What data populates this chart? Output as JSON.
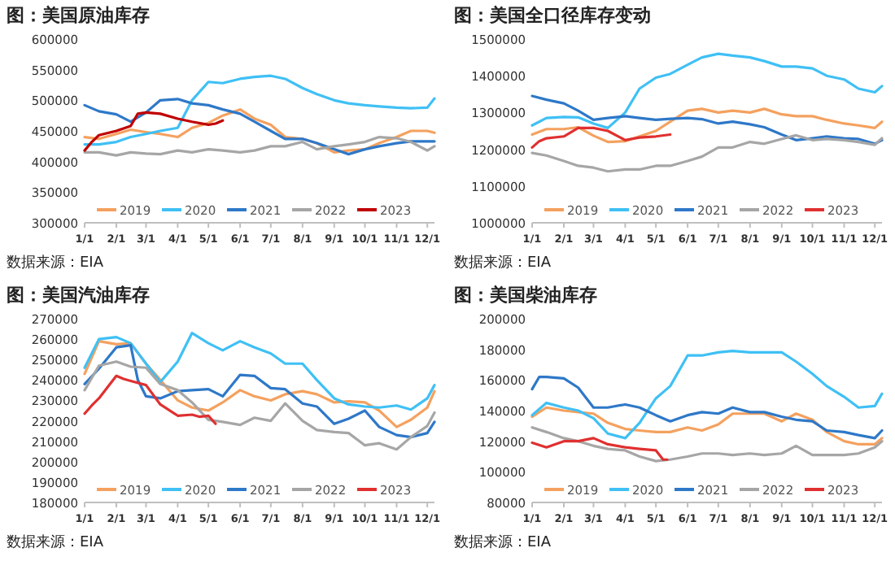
{
  "chart_data": [
    {
      "type": "line",
      "title": "图：美国原油库存",
      "annotations": [
        "数据来源：EIA"
      ],
      "legend": "bottom",
      "xlim": [
        "--01-01",
        "--12-08"
      ],
      "xticks": [
        {
          "value": "--01-01",
          "label": "1/1"
        },
        {
          "value": "--02-01",
          "label": "2/1"
        },
        {
          "value": "--03-01",
          "label": "3/1"
        },
        {
          "value": "--04-01",
          "label": "4/1"
        },
        {
          "value": "--05-01",
          "label": "5/1"
        },
        {
          "value": "--06-01",
          "label": "6/1"
        },
        {
          "value": "--07-01",
          "label": "7/1"
        },
        {
          "value": "--08-01",
          "label": "8/1"
        },
        {
          "value": "--09-01",
          "label": "9/1"
        },
        {
          "value": "--10-01",
          "label": "10/1"
        },
        {
          "value": "--11-01",
          "label": "11/1"
        },
        {
          "value": "--12-01",
          "label": "12/1"
        }
      ],
      "ylim": [
        300000,
        600000
      ],
      "yticks": [
        300000,
        350000,
        400000,
        450000,
        500000,
        550000,
        600000
      ],
      "x": [
        "--01-01",
        "--01-15",
        "--02-01",
        "--02-15",
        "--03-01",
        "--03-15",
        "--04-01",
        "--04-15",
        "--05-01",
        "--05-15",
        "--06-01",
        "--06-15",
        "--07-01",
        "--07-15",
        "--08-01",
        "--08-15",
        "--09-01",
        "--09-15",
        "--10-01",
        "--10-15",
        "--11-01",
        "--11-15",
        "--12-01",
        "--12-08"
      ],
      "series": [
        {
          "name": "2019",
          "color": "#f4a15f",
          "values": [
            440000,
            437000,
            445000,
            452000,
            448000,
            445000,
            440000,
            455000,
            463000,
            475000,
            485000,
            470000,
            460000,
            440000,
            437000,
            430000,
            415000,
            418000,
            420000,
            430000,
            440000,
            450000,
            450000,
            447000
          ]
        },
        {
          "name": "2020",
          "color": "#3fc0f5",
          "values": [
            428000,
            428000,
            432000,
            440000,
            445000,
            450000,
            455000,
            500000,
            530000,
            528000,
            535000,
            538000,
            540000,
            535000,
            520000,
            510000,
            500000,
            495000,
            492000,
            490000,
            488000,
            487000,
            488000,
            503000
          ]
        },
        {
          "name": "2021",
          "color": "#2e78c8",
          "values": [
            492000,
            482000,
            477000,
            465000,
            480000,
            500000,
            502000,
            495000,
            492000,
            485000,
            478000,
            465000,
            450000,
            437000,
            437000,
            430000,
            420000,
            412000,
            420000,
            425000,
            430000,
            433000,
            433000,
            433000
          ]
        },
        {
          "name": "2022",
          "color": "#a6a6a6",
          "values": [
            415000,
            415000,
            410000,
            415000,
            413000,
            412000,
            418000,
            415000,
            420000,
            418000,
            415000,
            418000,
            425000,
            425000,
            432000,
            420000,
            425000,
            428000,
            432000,
            440000,
            438000,
            432000,
            418000,
            425000
          ]
        },
        {
          "name": "2023",
          "color": "#c00000",
          "x": [
            "--01-01",
            "--01-08",
            "--01-15",
            "--02-01",
            "--02-15",
            "--02-22",
            "--03-01",
            "--03-15",
            "--04-01",
            "--04-15",
            "--05-01",
            "--05-08",
            "--05-15"
          ],
          "values": [
            418000,
            432000,
            443000,
            450000,
            458000,
            478000,
            480000,
            478000,
            470000,
            465000,
            460000,
            462000,
            467000
          ]
        }
      ]
    },
    {
      "type": "line",
      "title": "图：美国全口径库存变动",
      "annotations": [
        "数据来源：EIA"
      ],
      "legend": "bottom",
      "xlim": [
        "--01-01",
        "--12-08"
      ],
      "xticks": [
        {
          "value": "--01-01",
          "label": "1/1"
        },
        {
          "value": "--02-01",
          "label": "2/1"
        },
        {
          "value": "--03-01",
          "label": "3/1"
        },
        {
          "value": "--04-01",
          "label": "4/1"
        },
        {
          "value": "--05-01",
          "label": "5/1"
        },
        {
          "value": "--06-01",
          "label": "6/1"
        },
        {
          "value": "--07-01",
          "label": "7/1"
        },
        {
          "value": "--08-01",
          "label": "8/1"
        },
        {
          "value": "--09-01",
          "label": "9/1"
        },
        {
          "value": "--10-01",
          "label": "10/1"
        },
        {
          "value": "--11-01",
          "label": "11/1"
        },
        {
          "value": "--12-01",
          "label": "12/1"
        }
      ],
      "ylim": [
        1000000,
        1500000
      ],
      "yticks": [
        1000000,
        1100000,
        1200000,
        1300000,
        1400000,
        1500000
      ],
      "x": [
        "--01-01",
        "--01-15",
        "--02-01",
        "--02-15",
        "--03-01",
        "--03-15",
        "--04-01",
        "--04-15",
        "--05-01",
        "--05-15",
        "--06-01",
        "--06-15",
        "--07-01",
        "--07-15",
        "--08-01",
        "--08-15",
        "--09-01",
        "--09-15",
        "--10-01",
        "--10-15",
        "--11-01",
        "--11-15",
        "--12-01",
        "--12-08"
      ],
      "series": [
        {
          "name": "2019",
          "color": "#f4a15f",
          "values": [
            1240000,
            1255000,
            1255000,
            1260000,
            1237000,
            1220000,
            1222000,
            1235000,
            1250000,
            1275000,
            1305000,
            1310000,
            1300000,
            1305000,
            1300000,
            1310000,
            1295000,
            1290000,
            1290000,
            1280000,
            1270000,
            1265000,
            1258000,
            1275000
          ]
        },
        {
          "name": "2020",
          "color": "#3fc0f5",
          "values": [
            1265000,
            1285000,
            1288000,
            1287000,
            1270000,
            1258000,
            1300000,
            1365000,
            1395000,
            1405000,
            1430000,
            1450000,
            1460000,
            1455000,
            1450000,
            1440000,
            1425000,
            1425000,
            1420000,
            1400000,
            1390000,
            1365000,
            1355000,
            1372000
          ]
        },
        {
          "name": "2021",
          "color": "#2e78c8",
          "values": [
            1345000,
            1335000,
            1325000,
            1305000,
            1280000,
            1285000,
            1290000,
            1285000,
            1280000,
            1283000,
            1285000,
            1282000,
            1270000,
            1275000,
            1268000,
            1260000,
            1240000,
            1225000,
            1230000,
            1235000,
            1230000,
            1228000,
            1215000,
            1225000
          ]
        },
        {
          "name": "2022",
          "color": "#a6a6a6",
          "values": [
            1190000,
            1183000,
            1168000,
            1155000,
            1150000,
            1140000,
            1145000,
            1145000,
            1155000,
            1155000,
            1168000,
            1180000,
            1205000,
            1205000,
            1220000,
            1215000,
            1228000,
            1238000,
            1225000,
            1228000,
            1225000,
            1220000,
            1212000,
            1230000
          ]
        },
        {
          "name": "2023",
          "color": "#e03030",
          "x": [
            "--01-01",
            "--01-08",
            "--01-15",
            "--02-01",
            "--02-15",
            "--03-01",
            "--03-15",
            "--04-01",
            "--04-15",
            "--05-01",
            "--05-15"
          ],
          "values": [
            1205000,
            1222000,
            1230000,
            1235000,
            1258000,
            1258000,
            1250000,
            1225000,
            1232000,
            1235000,
            1240000
          ]
        }
      ]
    },
    {
      "type": "line",
      "title": "图：美国汽油库存",
      "annotations": [
        "数据来源：EIA"
      ],
      "legend": "bottom",
      "xlim": [
        "--01-01",
        "--12-08"
      ],
      "xticks": [
        {
          "value": "--01-01",
          "label": "1/1"
        },
        {
          "value": "--02-01",
          "label": "2/1"
        },
        {
          "value": "--03-01",
          "label": "3/1"
        },
        {
          "value": "--04-01",
          "label": "4/1"
        },
        {
          "value": "--05-01",
          "label": "5/1"
        },
        {
          "value": "--06-01",
          "label": "6/1"
        },
        {
          "value": "--07-01",
          "label": "7/1"
        },
        {
          "value": "--08-01",
          "label": "8/1"
        },
        {
          "value": "--09-01",
          "label": "9/1"
        },
        {
          "value": "--10-01",
          "label": "10/1"
        },
        {
          "value": "--11-01",
          "label": "11/1"
        },
        {
          "value": "--12-01",
          "label": "12/1"
        }
      ],
      "ylim": [
        180000,
        270000
      ],
      "yticks": [
        180000,
        190000,
        200000,
        210000,
        220000,
        230000,
        240000,
        250000,
        260000,
        270000
      ],
      "x": [
        "--01-01",
        "--01-15",
        "--02-01",
        "--02-15",
        "--03-01",
        "--03-15",
        "--04-01",
        "--04-15",
        "--05-01",
        "--05-15",
        "--06-01",
        "--06-15",
        "--07-01",
        "--07-15",
        "--08-01",
        "--08-15",
        "--09-01",
        "--09-15",
        "--10-01",
        "--10-15",
        "--11-01",
        "--11-15",
        "--12-01",
        "--12-08"
      ],
      "series": [
        {
          "name": "2019",
          "color": "#f4a15f",
          "values": [
            243000,
            259000,
            257500,
            258000,
            248000,
            240000,
            230000,
            226500,
            225000,
            229000,
            235000,
            232000,
            230000,
            233000,
            234500,
            233000,
            229000,
            229500,
            229000,
            225000,
            217000,
            220500,
            226500,
            234500
          ]
        },
        {
          "name": "2020",
          "color": "#3fc0f5",
          "values": [
            246000,
            260000,
            261000,
            258000,
            248000,
            239000,
            249000,
            263000,
            258000,
            254500,
            259000,
            256000,
            253000,
            248000,
            248000,
            240000,
            231000,
            228000,
            227000,
            226500,
            227500,
            225500,
            231000,
            237500
          ]
        },
        {
          "name": "2021",
          "color": "#2e78c8",
          "x": [
            "--01-01",
            "--01-15",
            "--02-01",
            "--02-15",
            "--02-22",
            "--03-01",
            "--03-15",
            "--04-01",
            "--04-15",
            "--05-01",
            "--05-15",
            "--06-01",
            "--06-15",
            "--07-01",
            "--07-15",
            "--08-01",
            "--08-15",
            "--09-01",
            "--09-15",
            "--10-01",
            "--10-15",
            "--11-01",
            "--11-15",
            "--12-01",
            "--12-08"
          ],
          "values": [
            238000,
            245500,
            256000,
            257000,
            240000,
            232000,
            231000,
            234500,
            235000,
            235500,
            232000,
            242500,
            242000,
            236000,
            235500,
            228500,
            227000,
            218500,
            221000,
            225000,
            217000,
            213000,
            212000,
            214000,
            219500
          ]
        },
        {
          "name": "2022",
          "color": "#a6a6a6",
          "values": [
            235000,
            247000,
            249000,
            246500,
            246000,
            238000,
            235000,
            229000,
            220500,
            219500,
            218000,
            221500,
            220000,
            228500,
            220000,
            215500,
            214500,
            214000,
            208000,
            209000,
            206000,
            212000,
            217500,
            224000
          ]
        },
        {
          "name": "2023",
          "color": "#e03030",
          "x": [
            "--01-01",
            "--01-08",
            "--01-15",
            "--02-01",
            "--02-08",
            "--02-15",
            "--03-01",
            "--03-15",
            "--04-01",
            "--04-15",
            "--04-22",
            "--05-01",
            "--05-08"
          ],
          "values": [
            223500,
            227500,
            231000,
            242000,
            240500,
            239500,
            237500,
            228000,
            222500,
            223000,
            222000,
            222500,
            218500
          ]
        }
      ]
    },
    {
      "type": "line",
      "title": "图：美国柴油库存",
      "annotations": [
        "数据来源：EIA"
      ],
      "legend": "bottom",
      "xlim": [
        "--01-01",
        "--12-08"
      ],
      "xticks": [
        {
          "value": "--01-01",
          "label": "1/1"
        },
        {
          "value": "--02-01",
          "label": "2/1"
        },
        {
          "value": "--03-01",
          "label": "3/1"
        },
        {
          "value": "--04-01",
          "label": "4/1"
        },
        {
          "value": "--05-01",
          "label": "5/1"
        },
        {
          "value": "--06-01",
          "label": "6/1"
        },
        {
          "value": "--07-01",
          "label": "7/1"
        },
        {
          "value": "--08-01",
          "label": "8/1"
        },
        {
          "value": "--09-01",
          "label": "9/1"
        },
        {
          "value": "--10-01",
          "label": "10/1"
        },
        {
          "value": "--11-01",
          "label": "11/1"
        },
        {
          "value": "--12-01",
          "label": "12/1"
        }
      ],
      "ylim": [
        80000,
        200000
      ],
      "yticks": [
        80000,
        100000,
        120000,
        140000,
        160000,
        180000,
        200000
      ],
      "x": [
        "--01-01",
        "--01-15",
        "--02-01",
        "--02-15",
        "--03-01",
        "--03-15",
        "--04-01",
        "--04-15",
        "--05-01",
        "--05-15",
        "--06-01",
        "--06-15",
        "--07-01",
        "--07-15",
        "--08-01",
        "--08-15",
        "--09-01",
        "--09-15",
        "--10-01",
        "--10-15",
        "--11-01",
        "--11-15",
        "--12-01",
        "--12-08"
      ],
      "series": [
        {
          "name": "2019",
          "color": "#f4a15f",
          "values": [
            136000,
            142000,
            140000,
            139000,
            138000,
            132000,
            128000,
            127000,
            126000,
            126000,
            129000,
            127000,
            131000,
            138000,
            138000,
            138000,
            133000,
            138000,
            134000,
            126000,
            120000,
            118000,
            118000,
            122000
          ]
        },
        {
          "name": "2020",
          "color": "#3fc0f5",
          "values": [
            137000,
            145000,
            142000,
            140000,
            135000,
            125000,
            122000,
            132000,
            148000,
            156000,
            176000,
            176000,
            178000,
            179000,
            178000,
            178000,
            178000,
            172000,
            164000,
            156000,
            149000,
            142000,
            143000,
            151000
          ]
        },
        {
          "name": "2021",
          "color": "#2e78c8",
          "x": [
            "--01-01",
            "--01-08",
            "--01-15",
            "--02-01",
            "--02-15",
            "--03-01",
            "--03-15",
            "--04-01",
            "--04-15",
            "--05-01",
            "--05-15",
            "--06-01",
            "--06-15",
            "--07-01",
            "--07-15",
            "--08-01",
            "--08-15",
            "--09-01",
            "--09-15",
            "--10-01",
            "--10-15",
            "--11-01",
            "--11-15",
            "--12-01",
            "--12-08"
          ],
          "values": [
            154000,
            162000,
            162000,
            161000,
            155000,
            142000,
            142000,
            144000,
            142000,
            137000,
            133000,
            137000,
            139000,
            138000,
            142000,
            139000,
            139000,
            136000,
            134000,
            133000,
            127000,
            126000,
            124000,
            122000,
            127000
          ]
        },
        {
          "name": "2022",
          "color": "#a6a6a6",
          "values": [
            129000,
            126000,
            122000,
            120000,
            117000,
            115000,
            114000,
            110000,
            107000,
            108000,
            110000,
            112000,
            112000,
            111000,
            112000,
            111000,
            112000,
            117000,
            111000,
            111000,
            111000,
            112000,
            116000,
            120000
          ]
        },
        {
          "name": "2023",
          "color": "#e03030",
          "x": [
            "--01-01",
            "--01-15",
            "--02-01",
            "--02-15",
            "--03-01",
            "--03-15",
            "--04-01",
            "--04-15",
            "--05-01",
            "--05-08",
            "--05-12"
          ],
          "values": [
            119000,
            116000,
            120000,
            120000,
            122000,
            118000,
            116000,
            115000,
            114000,
            108000,
            108000
          ]
        }
      ]
    }
  ]
}
